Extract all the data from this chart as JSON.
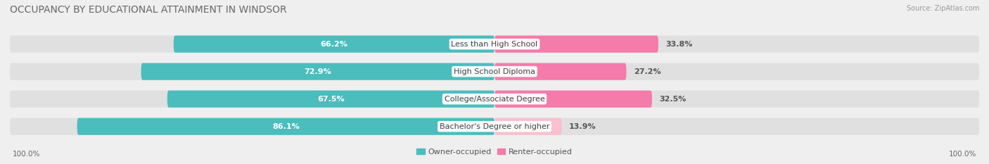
{
  "title": "OCCUPANCY BY EDUCATIONAL ATTAINMENT IN WINDSOR",
  "source": "Source: ZipAtlas.com",
  "categories": [
    "Less than High School",
    "High School Diploma",
    "College/Associate Degree",
    "Bachelor's Degree or higher"
  ],
  "owner_values": [
    66.2,
    72.9,
    67.5,
    86.1
  ],
  "renter_values": [
    33.8,
    27.2,
    32.5,
    13.9
  ],
  "owner_color": "#4BBDBD",
  "renter_color": "#F47BAA",
  "renter_color_last": "#F9C0D0",
  "background_color": "#efefef",
  "bar_background": "#e0e0e0",
  "title_fontsize": 10,
  "label_fontsize": 8,
  "axis_label_fontsize": 7.5,
  "legend_fontsize": 8,
  "x_axis_labels": [
    "100.0%",
    "100.0%"
  ],
  "max_val": 100
}
